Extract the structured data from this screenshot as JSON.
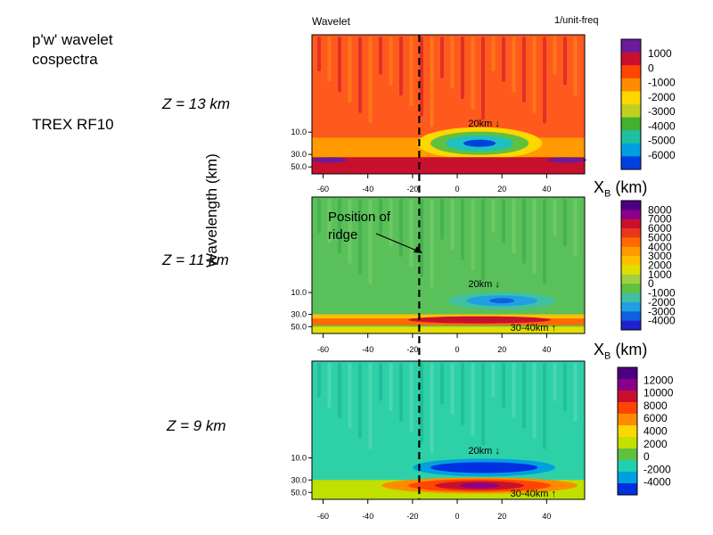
{
  "figure": {
    "title": "p'w' wavelet\ncospectra",
    "flight": "TREX RF10",
    "wavelet_label": "Wavelet",
    "units_label": "1/unit-freq",
    "ylabel": "Wavelength (km)",
    "xlabel_main": "X",
    "xlabel_sub": "B",
    "xlabel_unit": "(km)",
    "ridge_annotation": "Position of\nridge",
    "colors": {
      "dashed_line": "#000000",
      "frame": "#000000"
    }
  },
  "chart_data": [
    {
      "type": "heatmap",
      "panel_label": "Z = 13 km",
      "x_ticks": [
        -60,
        -40,
        -20,
        0,
        20,
        40
      ],
      "xlim": [
        -65,
        57
      ],
      "y_tick_labels": [
        "10.0",
        "30.0",
        "50.0"
      ],
      "ridge_x": -17,
      "colorbar": {
        "labels": [
          "1000",
          "0",
          "-1000",
          "-2000",
          "-3000",
          "-4000",
          "-5000",
          "-6000"
        ],
        "colors": [
          "#6a1b9a",
          "#c8102e",
          "#ff4500",
          "#ff8c00",
          "#ffd700",
          "#c0d020",
          "#44b030",
          "#1fc0a0",
          "#00a0e0",
          "#0040e0"
        ]
      },
      "annotations": [
        "20km ↓"
      ],
      "dominant_color": "#ff5a1e"
    },
    {
      "type": "heatmap",
      "panel_label": "Z = 11 km",
      "x_ticks": [
        -60,
        -40,
        -20,
        0,
        20,
        40
      ],
      "xlim": [
        -65,
        57
      ],
      "y_tick_labels": [
        "10.0",
        "30.0",
        "50.0"
      ],
      "ridge_x": -17,
      "colorbar": {
        "labels": [
          "8000",
          "7000",
          "6000",
          "5000",
          "4000",
          "3000",
          "2000",
          "1000",
          "0",
          "-1000",
          "-2000",
          "-3000",
          "-4000"
        ],
        "colors": [
          "#4b0082",
          "#8b008b",
          "#c8102e",
          "#e8381a",
          "#ff6a00",
          "#ff9a00",
          "#ffc000",
          "#e0e000",
          "#a0d040",
          "#60c040",
          "#40c0a0",
          "#20a0e0",
          "#1060e0",
          "#2020d0"
        ]
      },
      "annotations": [
        "20km ↓",
        "30-40km ↑"
      ],
      "dominant_color": "#5ac05a"
    },
    {
      "type": "heatmap",
      "panel_label": "Z = 9 km",
      "x_ticks": [
        -60,
        -40,
        -20,
        0,
        20,
        40
      ],
      "xlim": [
        -65,
        57
      ],
      "y_tick_labels": [
        "10.0",
        "30.0",
        "50.0"
      ],
      "ridge_x": -17,
      "colorbar": {
        "labels": [
          "12000",
          "10000",
          "8000",
          "6000",
          "4000",
          "2000",
          "0",
          "-2000",
          "-4000"
        ],
        "colors": [
          "#4b0082",
          "#8b008b",
          "#c8102e",
          "#ff4500",
          "#ff8c00",
          "#ffd700",
          "#c0e000",
          "#60c040",
          "#20d0b0",
          "#00a0e0",
          "#0030e0"
        ]
      },
      "annotations": [
        "20km ↓",
        "30-40km ↑"
      ],
      "dominant_color": "#2ed0a8"
    }
  ]
}
